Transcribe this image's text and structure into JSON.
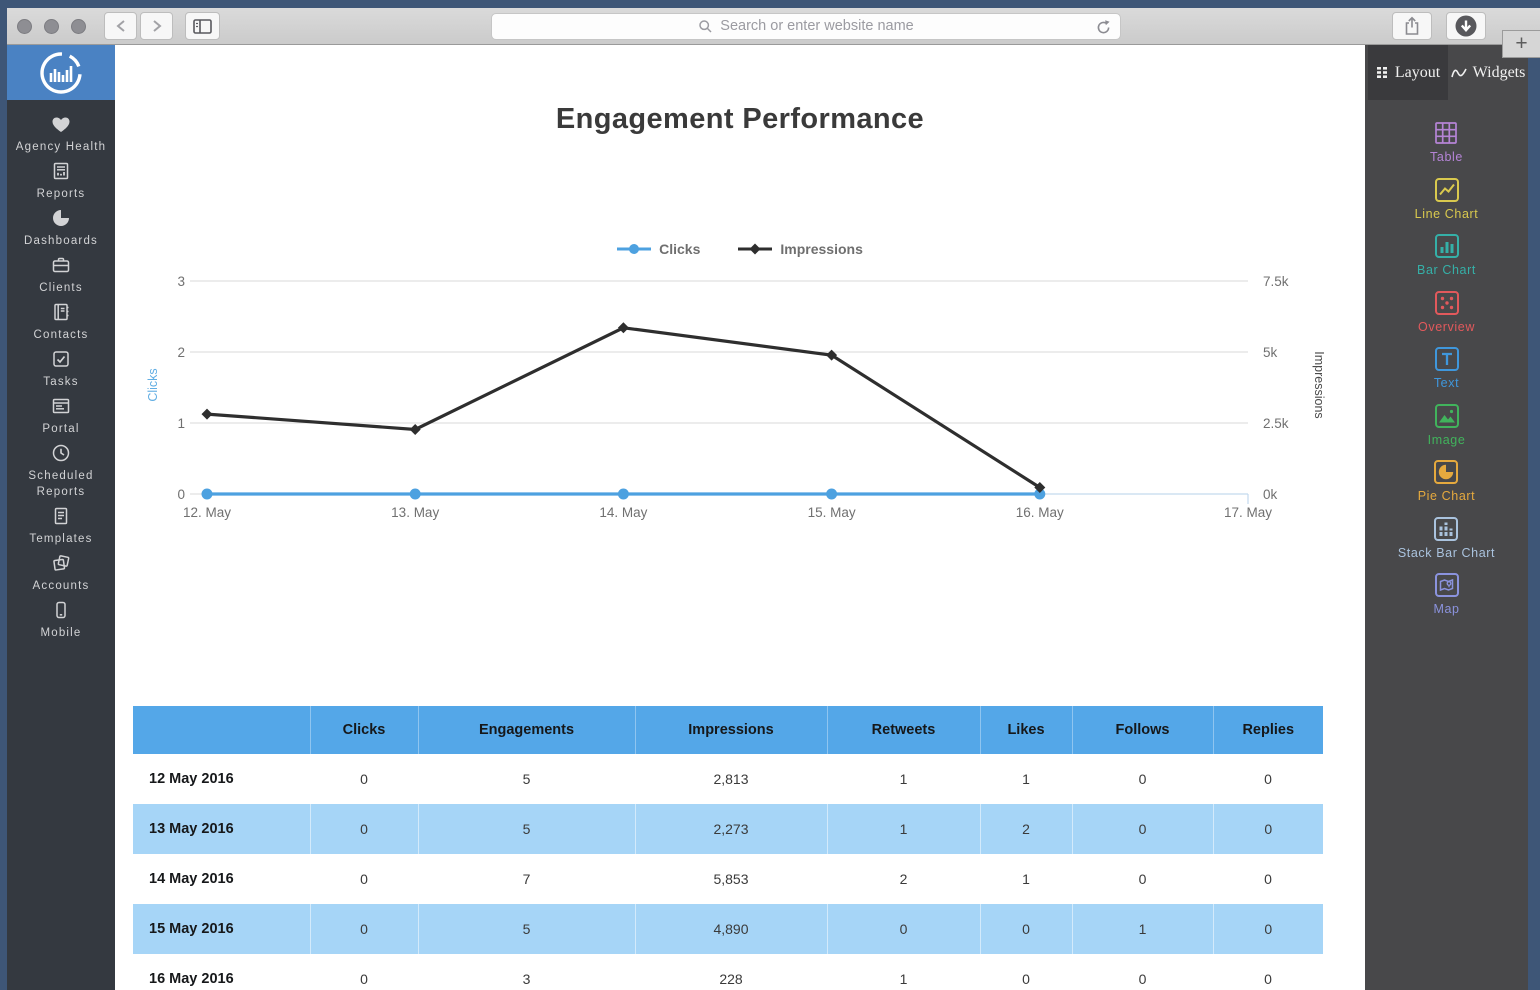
{
  "browser": {
    "search_placeholder": "Search or enter website name",
    "newtab_label": "+",
    "icons": [
      "back-chevron-icon",
      "forward-chevron-icon",
      "sidebar-toggle-icon",
      "search-icon",
      "reload-icon",
      "share-icon",
      "download-icon",
      "plus-icon"
    ]
  },
  "sidebar": {
    "logo_icon": "circle-bars-logo",
    "items": [
      {
        "label": "Agency Health",
        "icon": "heart-icon"
      },
      {
        "label": "Reports",
        "icon": "report-icon"
      },
      {
        "label": "Dashboards",
        "icon": "pie-icon"
      },
      {
        "label": "Clients",
        "icon": "briefcase-icon"
      },
      {
        "label": "Contacts",
        "icon": "address-book-icon"
      },
      {
        "label": "Tasks",
        "icon": "checkbox-icon"
      },
      {
        "label": "Portal",
        "icon": "browser-window-icon"
      },
      {
        "label": "Scheduled Reports",
        "icon": "clock-icon"
      },
      {
        "label": "Templates",
        "icon": "document-icon"
      },
      {
        "label": "Accounts",
        "icon": "cards-icon"
      },
      {
        "label": "Mobile",
        "icon": "phone-icon"
      }
    ]
  },
  "main": {
    "title": "Engagement Performance"
  },
  "chart_data": {
    "type": "line",
    "title": "Engagement Performance",
    "x": [
      "12. May",
      "13. May",
      "14. May",
      "15. May",
      "16. May",
      "17. May"
    ],
    "series": [
      {
        "name": "Clicks",
        "axis": "left",
        "color": "#4da1e0",
        "marker": "circle",
        "values": [
          0,
          0,
          0,
          0,
          0
        ]
      },
      {
        "name": "Impressions",
        "axis": "right",
        "color": "#2e2e2e",
        "marker": "diamond",
        "values": [
          2813,
          2273,
          5853,
          4890,
          228
        ]
      }
    ],
    "left_axis": {
      "label": "Clicks",
      "ticks": [
        "0",
        "1",
        "2",
        "3"
      ],
      "range": [
        0,
        3
      ],
      "label_color": "#62aee3"
    },
    "right_axis": {
      "label": "Impressions",
      "ticks": [
        "0k",
        "2.5k",
        "5k",
        "7.5k"
      ],
      "range": [
        0,
        7500
      ],
      "label_color": "#4a4a4a"
    },
    "legend_position": "top",
    "grid": true,
    "grid_color": "#d8d8d8",
    "baseline_color": "#c3d9ee",
    "tick_text_color": "#707070"
  },
  "table": {
    "columns": [
      "",
      "Clicks",
      "Engagements",
      "Impressions",
      "Retweets",
      "Likes",
      "Follows",
      "Replies"
    ],
    "rows": [
      {
        "date": "12 May 2016",
        "values": [
          "0",
          "5",
          "2,813",
          "1",
          "1",
          "0",
          "0"
        ]
      },
      {
        "date": "13 May 2016",
        "values": [
          "0",
          "5",
          "2,273",
          "1",
          "2",
          "0",
          "0"
        ]
      },
      {
        "date": "14 May 2016",
        "values": [
          "0",
          "7",
          "5,853",
          "2",
          "1",
          "0",
          "0"
        ]
      },
      {
        "date": "15 May 2016",
        "values": [
          "0",
          "5",
          "4,890",
          "0",
          "0",
          "1",
          "0"
        ]
      },
      {
        "date": "16 May 2016",
        "values": [
          "0",
          "3",
          "228",
          "1",
          "0",
          "0",
          "0"
        ]
      }
    ],
    "header_bg": "#54a7e8",
    "alt_row_bg": "#a6d5f7"
  },
  "widgets_panel": {
    "tabs": [
      {
        "label": "Layout",
        "icon": "grid-dots-icon",
        "selected": true
      },
      {
        "label": "Widgets",
        "icon": "wave-icon",
        "selected": false
      }
    ],
    "items": [
      {
        "label": "Table",
        "icon": "table-widget-icon",
        "color": "#b584d6"
      },
      {
        "label": "Line Chart",
        "icon": "line-chart-widget-icon",
        "color": "#d9c94e"
      },
      {
        "label": "Bar Chart",
        "icon": "bar-chart-widget-icon",
        "color": "#35b0a8"
      },
      {
        "label": "Overview",
        "icon": "overview-widget-icon",
        "color": "#e2595c"
      },
      {
        "label": "Text",
        "icon": "text-widget-icon",
        "color": "#3f97dc"
      },
      {
        "label": "Image",
        "icon": "image-widget-icon",
        "color": "#41b35c"
      },
      {
        "label": "Pie Chart",
        "icon": "pie-chart-widget-icon",
        "color": "#e5a93e"
      },
      {
        "label": "Stack Bar Chart",
        "icon": "stack-bar-widget-icon",
        "color": "#aac3de"
      },
      {
        "label": "Map",
        "icon": "map-widget-icon",
        "color": "#8b93de"
      }
    ]
  }
}
